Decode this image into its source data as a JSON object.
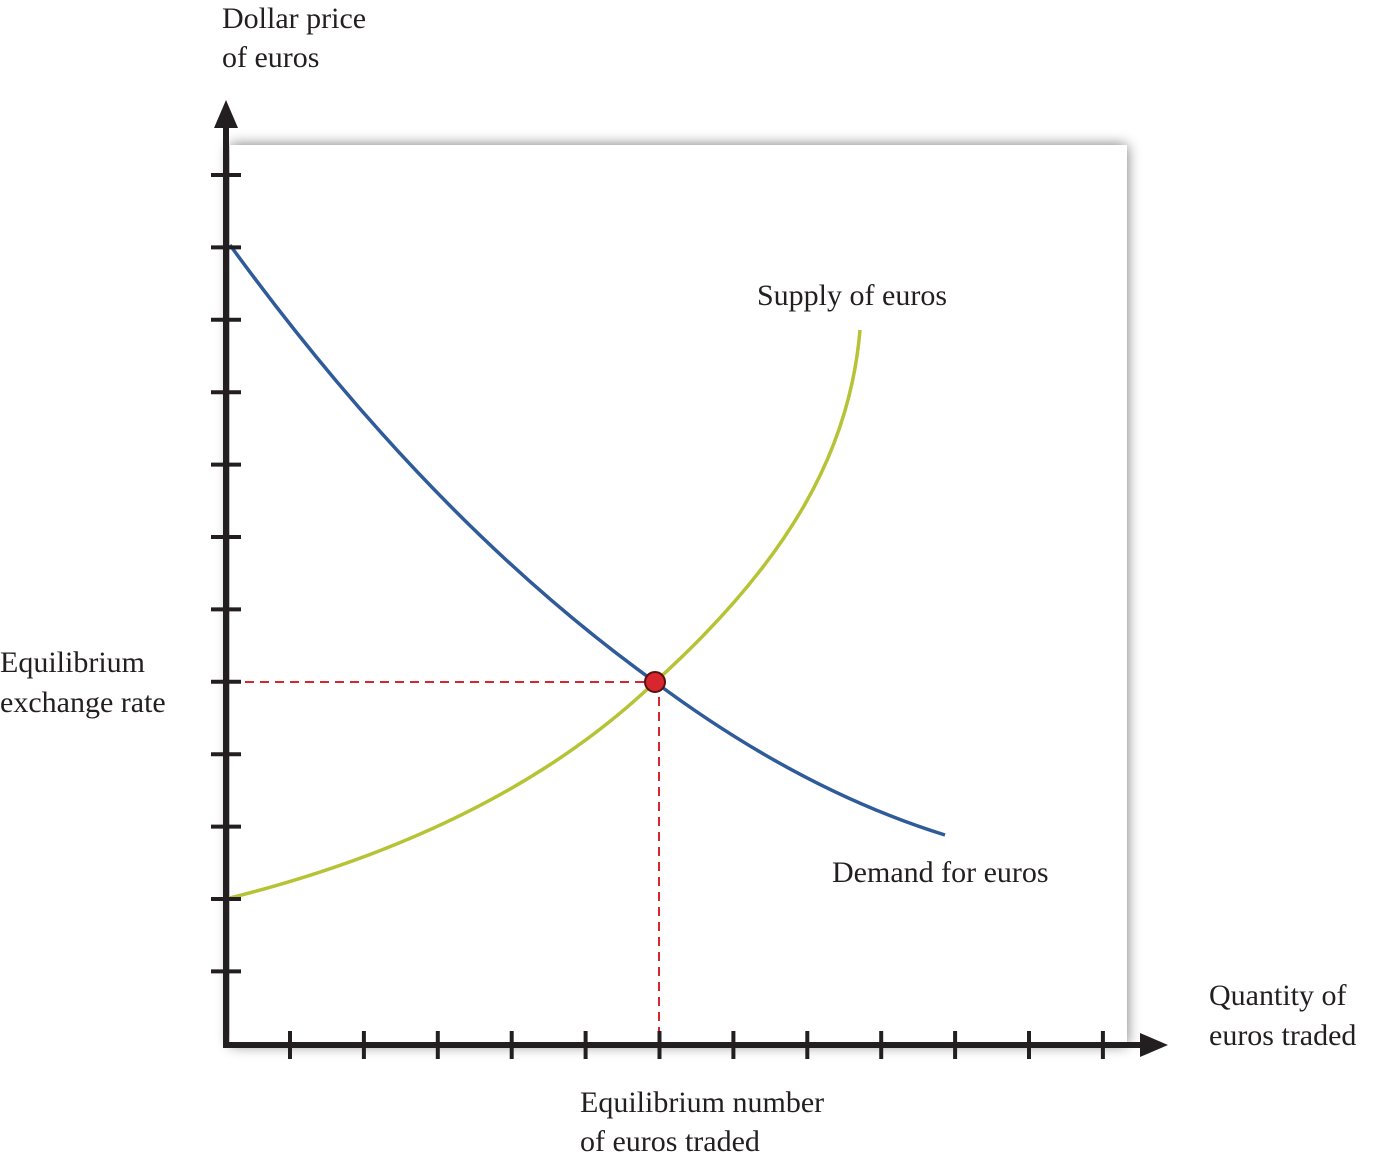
{
  "axes": {
    "y_label": [
      "Dollar price",
      "of euros"
    ],
    "x_label": [
      "Quantity of",
      "euros traded"
    ]
  },
  "curves": {
    "supply": "Supply of euros",
    "demand": "Demand for euros"
  },
  "equilibrium": {
    "rate_label": [
      "Equilibrium",
      "exchange rate"
    ],
    "quantity_label": [
      "Equilibrium number",
      "of euros traded"
    ]
  }
}
